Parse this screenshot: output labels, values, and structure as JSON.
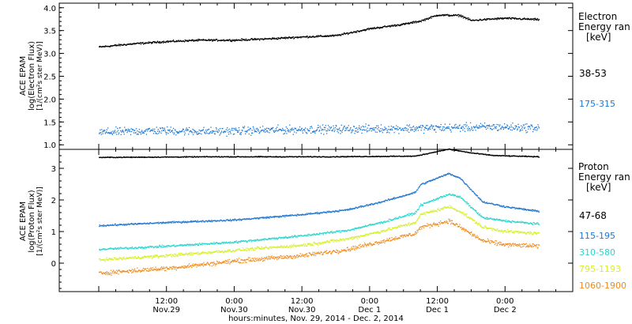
{
  "chart_data": [
    {
      "type": "scatter",
      "panel": "electron",
      "ylabel_lines": [
        "ACE EPAM",
        "log(Electron Flux)",
        "[1/(cm²s ster MeV)]"
      ],
      "ylim": [
        0.9,
        4.1
      ],
      "yticks": [
        1.0,
        1.5,
        2.0,
        2.5,
        3.0,
        3.5,
        4.0
      ],
      "ytick_labels": [
        "1.0",
        "1.5",
        "2.0",
        "2.5",
        "3.0",
        "3.5",
        "4.0"
      ],
      "legend_title": [
        "Electron",
        "Energy ran",
        "[keV]"
      ],
      "series": [
        {
          "name": "38-53",
          "color": "#000000",
          "noise": 0.03,
          "t": [
            0,
            6,
            12,
            18,
            24,
            30,
            36,
            42,
            48,
            54,
            57,
            60,
            64,
            66,
            68,
            72,
            76,
            78
          ],
          "y": [
            3.15,
            3.22,
            3.27,
            3.3,
            3.3,
            3.33,
            3.37,
            3.4,
            3.55,
            3.65,
            3.72,
            3.85,
            3.84,
            3.73,
            3.75,
            3.78,
            3.76,
            3.75
          ]
        },
        {
          "name": "175-315",
          "color": "#1f77d0",
          "noise": 0.13,
          "t": [
            0,
            10,
            20,
            30,
            40,
            50,
            60,
            70,
            78
          ],
          "y": [
            1.28,
            1.32,
            1.3,
            1.33,
            1.35,
            1.36,
            1.38,
            1.4,
            1.38
          ]
        }
      ]
    },
    {
      "type": "scatter",
      "panel": "proton",
      "ylabel_lines": [
        "ACE EPAM",
        "log(Proton Flux)",
        "[1/(cm²s ster MeV)]"
      ],
      "ylim": [
        -0.9,
        3.6
      ],
      "yticks": [
        0,
        1,
        2,
        3
      ],
      "ytick_labels": [
        "0",
        "1",
        "2",
        "3"
      ],
      "legend_title": [
        "Proton",
        "Energy ran",
        "[keV]"
      ],
      "series": [
        {
          "name": "47-68",
          "color": "#000000",
          "noise": 0.02,
          "t": [
            0,
            20,
            40,
            56,
            60,
            62,
            66,
            70,
            78
          ],
          "y": [
            3.36,
            3.38,
            3.38,
            3.4,
            3.55,
            3.62,
            3.5,
            3.42,
            3.38
          ]
        },
        {
          "name": "115-195",
          "color": "#1f77d0",
          "noise": 0.04,
          "t": [
            0,
            12,
            24,
            36,
            44,
            50,
            56,
            57,
            62,
            64,
            68,
            72,
            78
          ],
          "y": [
            1.2,
            1.3,
            1.38,
            1.55,
            1.7,
            1.95,
            2.25,
            2.5,
            2.85,
            2.7,
            1.95,
            1.8,
            1.65
          ]
        },
        {
          "name": "310-580",
          "color": "#29d6cf",
          "noise": 0.05,
          "t": [
            0,
            12,
            24,
            36,
            44,
            50,
            56,
            57,
            62,
            64,
            68,
            72,
            78
          ],
          "y": [
            0.45,
            0.55,
            0.68,
            0.88,
            1.05,
            1.3,
            1.6,
            1.85,
            2.2,
            2.1,
            1.45,
            1.35,
            1.25
          ]
        },
        {
          "name": "795-1193",
          "color": "#d6ef2a",
          "noise": 0.07,
          "t": [
            0,
            12,
            24,
            36,
            44,
            50,
            56,
            57,
            62,
            64,
            68,
            72,
            78
          ],
          "y": [
            0.12,
            0.25,
            0.42,
            0.58,
            0.78,
            1.02,
            1.3,
            1.55,
            1.8,
            1.65,
            1.15,
            1.02,
            0.95
          ]
        },
        {
          "name": "1060-1900",
          "color": "#f08a1c",
          "noise": 0.1,
          "t": [
            0,
            12,
            24,
            36,
            44,
            50,
            56,
            57,
            62,
            64,
            68,
            72,
            78
          ],
          "y": [
            -0.3,
            -0.15,
            0.08,
            0.25,
            0.45,
            0.7,
            0.95,
            1.15,
            1.35,
            1.15,
            0.72,
            0.6,
            0.55
          ]
        }
      ]
    }
  ],
  "time_axis": {
    "xlim_hours": [
      -7,
      84
    ],
    "ticks": [
      {
        "t": 12,
        "top": "12:00",
        "bottom": "Nov.29"
      },
      {
        "t": 24,
        "top": "0:00",
        "bottom": "Nov.30"
      },
      {
        "t": 36,
        "top": "12:00",
        "bottom": "Nov.30"
      },
      {
        "t": 48,
        "top": "0:00",
        "bottom": "Dec 1"
      },
      {
        "t": 60,
        "top": "12:00",
        "bottom": "Dec 1"
      },
      {
        "t": 72,
        "top": "0:00",
        "bottom": "Dec 2"
      }
    ],
    "xlabel": "hours:minutes, Nov. 29, 2014 - Dec. 2, 2014"
  }
}
